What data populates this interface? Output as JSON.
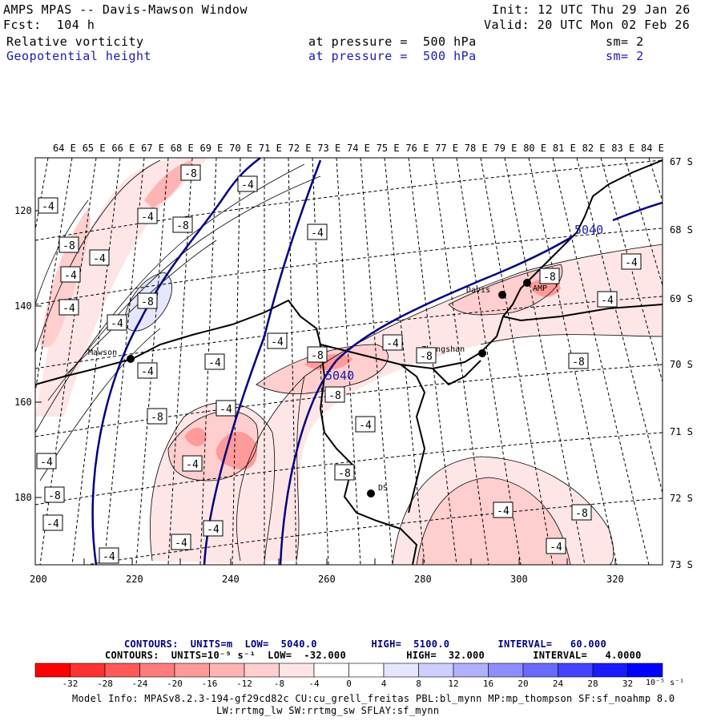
{
  "header": {
    "title": "AMPS MPAS -- Davis-Mawson Window",
    "init": "Init: 12 UTC Thu 29 Jan 26",
    "fcst": "Fcst:  104 h",
    "valid": "Valid: 20 UTC Mon 02 Feb 26",
    "field1": {
      "name": "Relative vorticity",
      "level": "at pressure =  500 hPa",
      "sm": "sm= 2"
    },
    "field2": {
      "name": "Geopotential height",
      "level": "at pressure =  500 hPa",
      "sm": "sm= 2"
    }
  },
  "map": {
    "top_labels": [
      "64 E",
      "65 E",
      "66 E",
      "67 E",
      "68 E",
      "69 E",
      "70 E",
      "71 E",
      "72 E",
      "73 E",
      "74 E",
      "75 E",
      "76 E",
      "77 E",
      "78 E",
      "79 E",
      "80 E",
      "81 E",
      "82 E",
      "83 E",
      "84 E"
    ],
    "right_labels": [
      "67 S",
      "68 S",
      "69 S",
      "70 S",
      "71 S",
      "72 S",
      "73 S"
    ],
    "left_labels": [
      "120",
      "140",
      "160",
      "180"
    ],
    "bottom_labels": [
      "200",
      "220",
      "240",
      "260",
      "280",
      "300",
      "320"
    ],
    "stations": [
      {
        "name": "Mawson"
      },
      {
        "name": "Davis"
      },
      {
        "name": "Zhongshan"
      },
      {
        "name": "AMP"
      },
      {
        "name": "DS"
      }
    ],
    "height_labels": [
      "5040",
      "5040"
    ],
    "vort_labels": [
      "-8",
      "-4",
      "-4",
      "-4",
      "-8",
      "-4",
      "-8",
      "-4",
      "-4",
      "-4",
      "-8",
      "-4",
      "-4",
      "-8",
      "-4",
      "-4",
      "-4",
      "-4",
      "-8",
      "-4",
      "-8",
      "-8",
      "-8",
      "-8",
      "-4",
      "-4",
      "-4",
      "-4",
      "-8",
      "-8",
      "-4",
      "-4",
      "-4",
      "-8",
      "-4",
      "-4",
      "-4"
    ]
  },
  "footer": {
    "contours1": "CONTOURS:  UNITS=m  LOW=  5040.0         HIGH=  5100.0        INTERVAL=   60.000",
    "contours2": "CONTOURS:  UNITS=10⁻⁵ s⁻¹  LOW=  -32.000          HIGH=  32.000        INTERVAL=   4.0000",
    "colorbar": {
      "colors": [
        "#ff0000",
        "#ff3232",
        "#ff5a5a",
        "#ff7c7c",
        "#ff9a9a",
        "#ffb4b4",
        "#ffcece",
        "#ffe6e6",
        "#ffffff",
        "#ffffff",
        "#e6e6ff",
        "#ceceff",
        "#b0b0ff",
        "#8e8eff",
        "#6a6aff",
        "#4444ff",
        "#1a1aff",
        "#0000ff"
      ],
      "ticks": [
        "-32",
        "-28",
        "-24",
        "-20",
        "-16",
        "-12",
        "-8",
        "-4",
        "0",
        "4",
        "8",
        "12",
        "16",
        "20",
        "24",
        "28",
        "32"
      ],
      "units": "10⁻⁵ s⁻¹"
    },
    "model_info1": "Model Info: MPASv8.2.3-194-gf29cd82c CU:cu_grell_freitas PBL:bl_mynn MP:mp_thompson SF:sf_noahmp 8.0",
    "model_info2": "LW:rrtmg_lw SW:rrtmg_sw SFLAY:sf_mynn"
  }
}
